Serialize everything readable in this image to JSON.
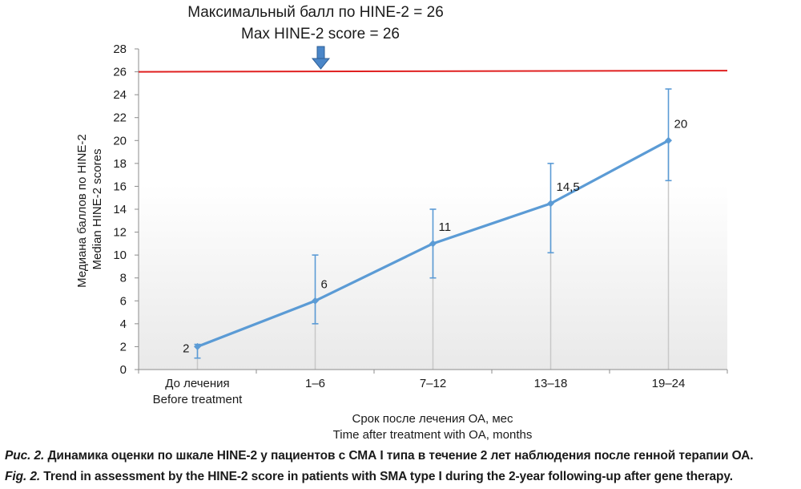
{
  "header": {
    "max_score_ru": "Максимальный балл по HINE-2 = 26",
    "max_score_en": "Max HINE-2 score = 26"
  },
  "chart_data": {
    "type": "line",
    "categories": [
      [
        "До лечения",
        "Before treatment"
      ],
      [
        "1–6",
        ""
      ],
      [
        "7–12",
        ""
      ],
      [
        "13–18",
        ""
      ],
      [
        "19–24",
        ""
      ]
    ],
    "series": [
      {
        "values": [
          2,
          6,
          11,
          14.5,
          20
        ],
        "labels": [
          "2",
          "6",
          "11",
          "14,5",
          "20"
        ],
        "error_low": [
          1,
          4,
          8,
          10.2,
          16.5
        ],
        "error_high": [
          2.2,
          10,
          14,
          18,
          24.5
        ],
        "color": "#5b9bd5"
      }
    ],
    "reference_line": {
      "value": 26,
      "color": "#e02020"
    },
    "ylabel": [
      "Медиана баллов по HINE-2",
      "Median HINE-2 scores"
    ],
    "xlabel": [
      "Срок после лечения ОА, мес",
      "Time after treatment with OA, months"
    ],
    "ylim": [
      0,
      28
    ],
    "yticks": [
      0,
      2,
      4,
      6,
      8,
      10,
      12,
      14,
      16,
      18,
      20,
      22,
      24,
      26,
      28
    ],
    "grid": false
  },
  "caption": {
    "ru_prefix": "Рис. 2.",
    "ru_text": " Динамика оценки по шкале HINE-2 у пациентов с СМА I типа в течение 2 лет наблюдения после генной терапии ОА.",
    "en_prefix": "Fig. 2.",
    "en_text": " Trend in assessment by the HINE-2 score in patients with SMA type I during the  2-year following-up after gene therapy."
  }
}
